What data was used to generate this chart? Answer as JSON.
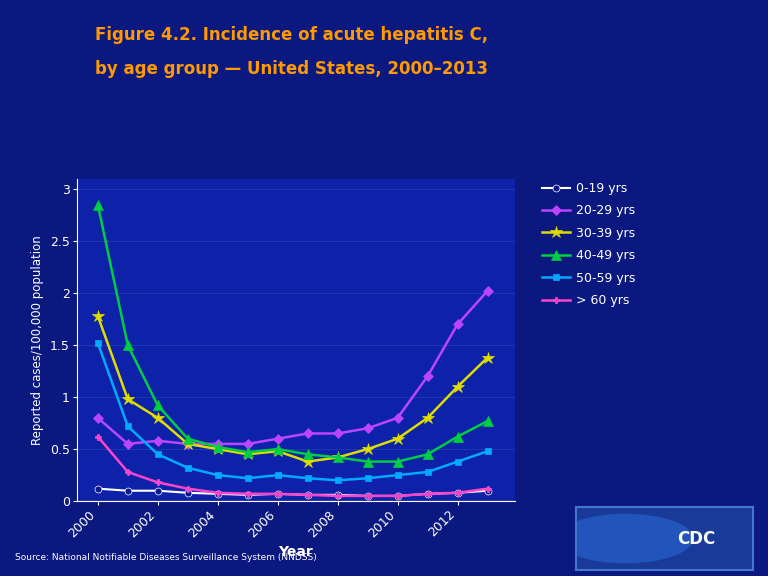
{
  "title_line1": "Figure 4.2. Incidence of acute hepatitis C,",
  "title_line2": "by age group — United States, 2000–2013",
  "xlabel": "Year",
  "ylabel": "Reported cases/100,000 population",
  "source": "Source: National Notifiable Diseases Surveillance System (NNDSS)",
  "years": [
    2000,
    2001,
    2002,
    2003,
    2004,
    2005,
    2006,
    2007,
    2008,
    2009,
    2010,
    2011,
    2012,
    2013
  ],
  "series_order": [
    "0-19 yrs",
    "20-29 yrs",
    "30-39 yrs",
    "40-49 yrs",
    "50-59 yrs",
    "> 60 yrs"
  ],
  "series": {
    "0-19 yrs": {
      "values": [
        0.12,
        0.1,
        0.1,
        0.08,
        0.07,
        0.06,
        0.07,
        0.06,
        0.06,
        0.05,
        0.05,
        0.07,
        0.08,
        0.1
      ],
      "color": "#ffffff",
      "marker": "o",
      "markerfacecolor": "#0a1a8a",
      "linestyle": "-",
      "linewidth": 1.5,
      "markersize": 5
    },
    "20-29 yrs": {
      "values": [
        0.8,
        0.55,
        0.58,
        0.55,
        0.55,
        0.55,
        0.6,
        0.65,
        0.65,
        0.7,
        0.8,
        1.2,
        1.7,
        2.02
      ],
      "color": "#bb44ff",
      "marker": "D",
      "markerfacecolor": "#bb44ff",
      "linestyle": "-",
      "linewidth": 1.8,
      "markersize": 5
    },
    "30-39 yrs": {
      "values": [
        1.78,
        0.98,
        0.8,
        0.55,
        0.5,
        0.45,
        0.48,
        0.38,
        0.42,
        0.5,
        0.6,
        0.8,
        1.1,
        1.38
      ],
      "color": "#dddd00",
      "marker": "*",
      "markerfacecolor": "#dddd00",
      "linestyle": "-",
      "linewidth": 1.8,
      "markersize": 9
    },
    "40-49 yrs": {
      "values": [
        2.85,
        1.5,
        0.92,
        0.6,
        0.52,
        0.47,
        0.5,
        0.45,
        0.42,
        0.38,
        0.38,
        0.45,
        0.62,
        0.77
      ],
      "color": "#00cc44",
      "marker": "^",
      "markerfacecolor": "#00cc44",
      "linestyle": "-",
      "linewidth": 1.8,
      "markersize": 7
    },
    "50-59 yrs": {
      "values": [
        1.52,
        0.72,
        0.45,
        0.32,
        0.25,
        0.22,
        0.25,
        0.22,
        0.2,
        0.22,
        0.25,
        0.28,
        0.38,
        0.48
      ],
      "color": "#00aaff",
      "marker": "s",
      "markerfacecolor": "#00aaff",
      "linestyle": "-",
      "linewidth": 1.8,
      "markersize": 5
    },
    "> 60 yrs": {
      "values": [
        0.62,
        0.28,
        0.18,
        0.12,
        0.08,
        0.07,
        0.07,
        0.06,
        0.05,
        0.05,
        0.05,
        0.07,
        0.08,
        0.12
      ],
      "color": "#ff44cc",
      "marker": "P",
      "markerfacecolor": "#ff44cc",
      "linestyle": "-",
      "linewidth": 1.8,
      "markersize": 5
    }
  },
  "bg_color": "#0a1880",
  "ax_bg_color": "#0d22a8",
  "text_color": "#ffffff",
  "title_color": "#ff9900",
  "grid_color": "#3355bb",
  "ylim": [
    0,
    3.1
  ],
  "yticks": [
    0,
    0.5,
    1.0,
    1.5,
    2.0,
    2.5,
    3.0
  ],
  "ytick_labels": [
    "0",
    "0.5",
    "1",
    "1.5",
    "2",
    "2.5",
    "3"
  ],
  "xticks": [
    2000,
    2002,
    2004,
    2006,
    2008,
    2010,
    2012
  ],
  "xtick_labels": [
    "2000",
    "2002",
    "2004",
    "2006",
    "2008",
    "2010",
    "2012"
  ]
}
